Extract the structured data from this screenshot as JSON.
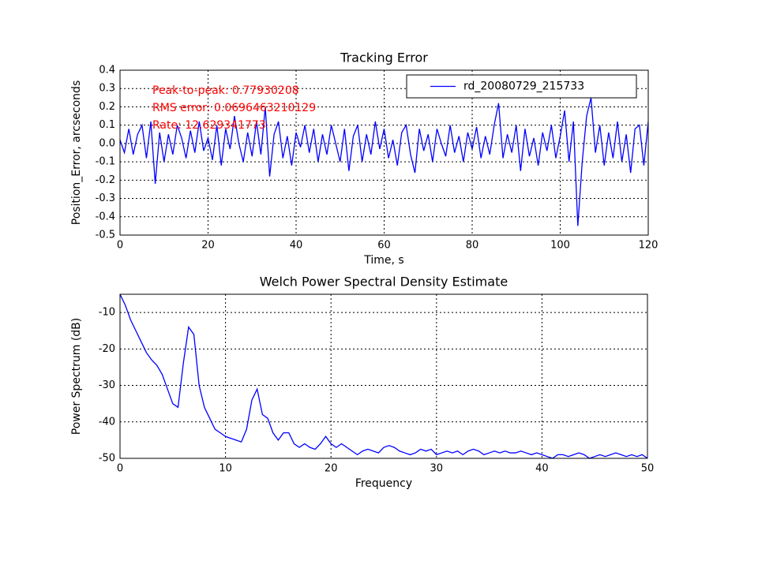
{
  "chart_data": [
    {
      "type": "line",
      "title": "Tracking Error",
      "xlabel": "Time, s",
      "ylabel": "Position_Error, arcseconds",
      "x": [
        0,
        1,
        2,
        3,
        4,
        5,
        6,
        7,
        8,
        9,
        10,
        11,
        12,
        13,
        14,
        15,
        16,
        17,
        18,
        19,
        20,
        21,
        22,
        23,
        24,
        25,
        26,
        27,
        28,
        29,
        30,
        31,
        32,
        33,
        34,
        35,
        36,
        37,
        38,
        39,
        40,
        41,
        42,
        43,
        44,
        45,
        46,
        47,
        48,
        49,
        50,
        51,
        52,
        53,
        54,
        55,
        56,
        57,
        58,
        59,
        60,
        61,
        62,
        63,
        64,
        65,
        66,
        67,
        68,
        69,
        70,
        71,
        72,
        73,
        74,
        75,
        76,
        77,
        78,
        79,
        80,
        81,
        82,
        83,
        84,
        85,
        86,
        87,
        88,
        89,
        90,
        91,
        92,
        93,
        94,
        95,
        96,
        97,
        98,
        99,
        100,
        101,
        102,
        103,
        104,
        105,
        106,
        107,
        108,
        109,
        110,
        111,
        112,
        113,
        114,
        115,
        116,
        117,
        118,
        119,
        120
      ],
      "series": [
        {
          "name": "rd_20080729_215733",
          "color": "#0000ff",
          "values": [
            0.02,
            -0.05,
            0.08,
            -0.06,
            0.05,
            0.1,
            -0.08,
            0.12,
            -0.22,
            0.06,
            -0.1,
            0.05,
            -0.06,
            0.1,
            0.03,
            -0.08,
            0.07,
            -0.05,
            0.12,
            -0.04,
            0.03,
            -0.09,
            0.1,
            -0.12,
            0.08,
            -0.03,
            0.15,
            0.0,
            -0.1,
            0.06,
            -0.07,
            0.12,
            -0.06,
            0.2,
            -0.18,
            0.05,
            0.12,
            -0.08,
            0.04,
            -0.12,
            0.06,
            -0.02,
            0.1,
            -0.05,
            0.08,
            -0.1,
            0.05,
            -0.06,
            0.1,
            0.0,
            -0.1,
            0.08,
            -0.15,
            0.04,
            0.1,
            -0.1,
            0.05,
            -0.06,
            0.12,
            -0.03,
            0.08,
            -0.08,
            0.02,
            -0.12,
            0.06,
            0.1,
            -0.06,
            -0.16,
            0.08,
            -0.04,
            0.05,
            -0.1,
            0.08,
            0.0,
            -0.07,
            0.1,
            -0.05,
            0.04,
            -0.1,
            0.06,
            -0.03,
            0.09,
            -0.08,
            0.04,
            -0.06,
            0.1,
            0.22,
            -0.08,
            0.05,
            -0.05,
            0.1,
            -0.15,
            0.08,
            -0.07,
            0.03,
            -0.12,
            0.06,
            -0.04,
            0.1,
            -0.08,
            0.04,
            0.18,
            -0.1,
            0.12,
            -0.45,
            -0.1,
            0.15,
            0.25,
            -0.05,
            0.1,
            -0.12,
            0.06,
            -0.08,
            0.12,
            -0.1,
            0.05,
            -0.16,
            0.08,
            0.1,
            -0.12,
            0.12
          ]
        }
      ],
      "annotations": [
        "Peak-to-peak: 0.77930208",
        "RMS error: 0.0696463210129",
        "Rate: 12.629341773"
      ],
      "annotation_color": "#ff0000",
      "legend": "upper right",
      "xlim": [
        0,
        120
      ],
      "xticks": [
        0,
        20,
        40,
        60,
        80,
        100,
        120
      ],
      "ylim": [
        -0.5,
        0.4
      ],
      "yticks": [
        0.4,
        0.3,
        0.2,
        0.1,
        {
          "value": 0,
          "label": "0.0"
        },
        -0.1,
        -0.2,
        -0.3,
        -0.4,
        -0.5
      ],
      "grid": true
    },
    {
      "type": "line",
      "title": "Welch Power Spectral Density Estimate",
      "xlabel": "Frequency",
      "ylabel": "Power Spectrum (dB)",
      "x": [
        0,
        0.5,
        1,
        1.5,
        2,
        2.5,
        3,
        3.5,
        4,
        4.5,
        5,
        5.5,
        6,
        6.5,
        7,
        7.5,
        8,
        8.5,
        9,
        9.5,
        10,
        10.5,
        11,
        11.5,
        12,
        12.5,
        13,
        13.5,
        14,
        14.5,
        15,
        15.5,
        16,
        16.5,
        17,
        17.5,
        18,
        18.5,
        19,
        19.5,
        20,
        20.5,
        21,
        21.5,
        22,
        22.5,
        23,
        23.5,
        24,
        24.5,
        25,
        25.5,
        26,
        26.5,
        27,
        27.5,
        28,
        28.5,
        29,
        29.5,
        30,
        30.5,
        31,
        31.5,
        32,
        32.5,
        33,
        33.5,
        34,
        34.5,
        35,
        35.5,
        36,
        36.5,
        37,
        37.5,
        38,
        38.5,
        39,
        39.5,
        40,
        40.5,
        41,
        41.5,
        42,
        42.5,
        43,
        43.5,
        44,
        44.5,
        45,
        45.5,
        46,
        46.5,
        47,
        47.5,
        48,
        48.5,
        49,
        49.5,
        50
      ],
      "values": [
        -5,
        -8,
        -12,
        -15,
        -18,
        -21,
        -23,
        -24.5,
        -27,
        -31,
        -35,
        -36,
        -24,
        -14,
        -16,
        -30,
        -36,
        -39,
        -42,
        -43,
        -44,
        -44.5,
        -45,
        -45.5,
        -42,
        -34,
        -31,
        -38,
        -39,
        -43,
        -45,
        -43,
        -43,
        -46,
        -47,
        -46,
        -47,
        -47.5,
        -46,
        -44,
        -46,
        -47,
        -46,
        -47,
        -48,
        -49,
        -48,
        -47.5,
        -48,
        -48.5,
        -47,
        -46.5,
        -47,
        -48,
        -48.5,
        -49,
        -48.5,
        -47.5,
        -48,
        -47.5,
        -49,
        -48.5,
        -48,
        -48.5,
        -48,
        -49,
        -48,
        -47.5,
        -48,
        -49,
        -48.5,
        -48,
        -48.5,
        -48,
        -48.5,
        -48.5,
        -48,
        -48.5,
        -49,
        -48.5,
        -49,
        -49.5,
        -50,
        -49,
        -49,
        -49.5,
        -49,
        -48.5,
        -49,
        -50,
        -49.5,
        -49,
        -49.5,
        -49,
        -48.5,
        -49,
        -49.5,
        -49,
        -49.5,
        -49,
        -50
      ],
      "color": "#0000ff",
      "xlim": [
        0,
        50
      ],
      "xticks": [
        0,
        10,
        20,
        30,
        40,
        50
      ],
      "ylim": [
        -50,
        -5
      ],
      "yticks": [
        -50,
        -40,
        -30,
        -20,
        -10
      ],
      "grid": true
    }
  ]
}
